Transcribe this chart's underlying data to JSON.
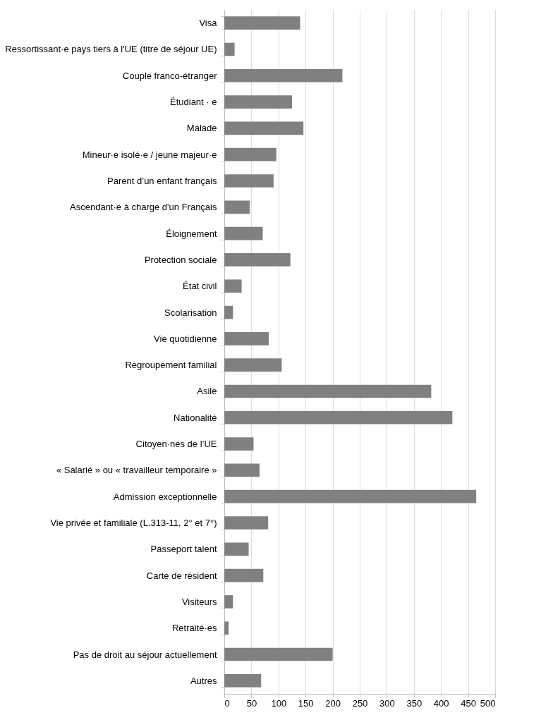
{
  "chart_data": {
    "type": "bar",
    "orientation": "horizontal",
    "categories": [
      "Visa",
      "Ressortissant·e pays tiers à l'UE (titre de séjour UE)",
      "Couple franco-étranger",
      "Étudiant · e",
      "Malade",
      "Mineur·e isolé·e / jeune majeur·e",
      "Parent d’un enfant français",
      "Ascendant·e à charge d'un Français",
      "Éloignement",
      "Protection sociale",
      "État civil",
      "Scolarisation",
      "Vie quotidienne",
      "Regroupement familial",
      "Asile",
      "Nationalité",
      "Citoyen·nes de l’UE",
      "« Salarié » ou « travailleur temporaire »",
      "Admission exceptionnelle",
      "Vie privée et familiale (L.313-11, 2° et 7°)",
      "Passeport talent",
      "Carte de résident",
      "Visiteurs",
      "Retraité·es",
      "Pas de droit au séjour actuellement",
      "Autres"
    ],
    "values": [
      140,
      19,
      218,
      125,
      146,
      96,
      91,
      47,
      71,
      122,
      32,
      16,
      82,
      106,
      382,
      421,
      54,
      65,
      465,
      81,
      45,
      72,
      16,
      8,
      200,
      68
    ],
    "color": "#808080",
    "xlim": [
      0,
      500
    ],
    "xticks": [
      0,
      50,
      100,
      150,
      200,
      250,
      300,
      350,
      400,
      450,
      500
    ],
    "grid": "x"
  }
}
